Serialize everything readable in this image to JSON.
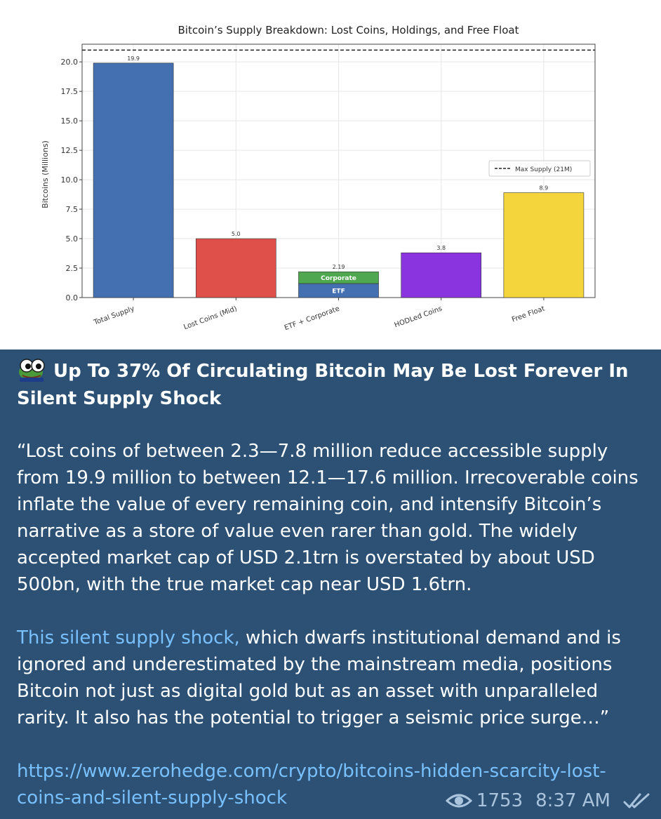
{
  "chart_data": {
    "type": "bar",
    "title": "Bitcoin’s Supply Breakdown: Lost Coins, Holdings, and Free Float",
    "ylabel": "Bitcoins (Millions)",
    "xlabel": "",
    "ylim": [
      0,
      21.5
    ],
    "yticks": [
      "0.0",
      "2.5",
      "5.0",
      "7.5",
      "10.0",
      "12.5",
      "15.0",
      "17.5",
      "20.0"
    ],
    "categories": [
      "Total Supply",
      "Lost Coins (Mid)",
      "ETF + Corporate",
      "HODLed Coins",
      "Free Float"
    ],
    "values": [
      19.9,
      5.0,
      2.19,
      3.8,
      8.9
    ],
    "value_labels": [
      "19.9",
      "5.0",
      "2.19",
      "3.8",
      "8.9"
    ],
    "colors": [
      "#4470b2",
      "#e0504a",
      null,
      "#8a34e0",
      "#f5d53c"
    ],
    "stack": {
      "category": "ETF + Corporate",
      "segments": [
        {
          "label": "ETF",
          "value": 1.19,
          "color": "#4470b2"
        },
        {
          "label": "Corporate",
          "value": 1.0,
          "color": "#4fa84f"
        }
      ]
    },
    "reference_line": {
      "value": 21,
      "label": "Max Supply (21M)",
      "style": "dashed"
    },
    "legend_placement": "right",
    "grid": true
  },
  "message": {
    "title": "Up To 37% Of Circulating Bitcoin May Be Lost Forever In Silent Supply Shock",
    "paragraph1": "“Lost coins of between 2.3—7.8 million reduce accessible supply from 19.9 million to between 12.1—17.6 million. Irrecoverable coins inflate the value of every remaining coin, and intensify Bitcoin’s narrative as a store of value even rarer than gold. The widely accepted market cap of USD 2.1trn is overstated by about USD 500bn, with the true market cap near USD 1.6trn.",
    "paragraph2_link": "This silent supply shock,",
    "paragraph2_rest": " which dwarfs institutional demand and is ignored and underestimated by the mainstream media, positions Bitcoin not just as digital gold but as an asset with unparalleled rarity. It also has the potential to trigger a seismic price surge…”",
    "url": "https://www.zerohedge.com/crypto/bitcoins-hidden-scarcity-lost-coins-and-silent-supply-shock",
    "views": "1753",
    "time": "8:37 AM",
    "status_icon": "double-check-icon",
    "views_icon": "eye-icon",
    "avatar_icon": "frog-avatar-icon"
  },
  "colors": {
    "background": "#2c5174",
    "link": "#79c0ff",
    "meta": "#a9c4dc"
  }
}
